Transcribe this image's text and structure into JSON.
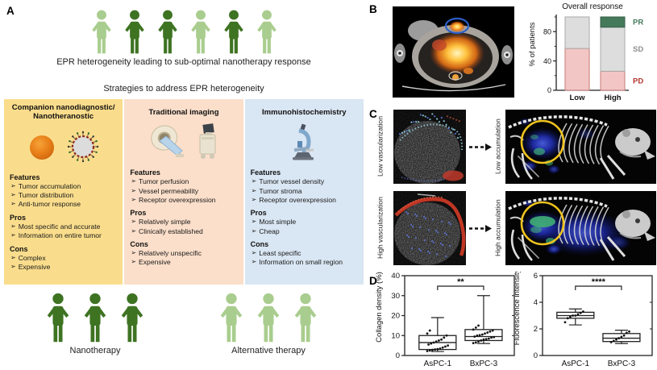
{
  "colors": {
    "person_light_green": "#a9cd8e",
    "person_dark_green": "#3e7322",
    "panel_yellow": "#fadd8c",
    "panel_peach": "#fbdfca",
    "panel_blue": "#d9e6f3",
    "annotation_blue": "#2b5fc7",
    "annotation_yellow": "#f0c41f"
  },
  "panels": {
    "a": {
      "label": "A",
      "top_caption": "EPR heterogeneity leading to sub-optimal nanotherapy response",
      "strategies_title": "Strategies to address EPR heterogeneity",
      "top_people": [
        "light",
        "dark",
        "dark",
        "light",
        "dark",
        "light"
      ],
      "bullet": "➢",
      "section_labels": {
        "features": "Features",
        "pros": "Pros",
        "cons": "Cons"
      },
      "columns": [
        {
          "title": "Companion nanodiagnostic/ Nanotheranostic",
          "bg": "#fadd8c",
          "icons": [
            "nanosphere-icon",
            "liposome-icon"
          ],
          "features": [
            "Tumor accumulation",
            "Tumor distribution",
            "Anti-tumor response"
          ],
          "pros": [
            "Most specific and accurate",
            "Information on entire tumor"
          ],
          "cons": [
            "Complex",
            "Expensive"
          ]
        },
        {
          "title": "Traditional imaging",
          "bg": "#fbdfca",
          "icons": [
            "ct-scanner-icon",
            "ultrasound-machine-icon"
          ],
          "features": [
            "Tumor perfusion",
            "Vessel permeability",
            "Receptor overexpression"
          ],
          "pros": [
            "Relatively simple",
            "Clinically established"
          ],
          "cons": [
            "Relatively unspecific",
            "Expensive"
          ]
        },
        {
          "title": "Immunohistochemistry",
          "bg": "#d9e6f3",
          "icons": [
            "microscope-icon"
          ],
          "features": [
            "Tumor vessel density",
            "Tumor stroma",
            "Receptor overexpression"
          ],
          "pros": [
            "Most simple",
            "Cheap"
          ],
          "cons": [
            "Least specific",
            "Information on small region"
          ]
        }
      ],
      "bottom_groups": [
        {
          "label": "Nanotherapy",
          "shade": "dark",
          "count": 3
        },
        {
          "label": "Alternative therapy",
          "shade": "light",
          "count": 3
        }
      ]
    },
    "b": {
      "label": "B"
    },
    "c": {
      "label": "C",
      "rows": [
        {
          "left_label": "Low vascularization",
          "right_label": "Low accumulation"
        },
        {
          "left_label": "High vascularization",
          "right_label": "High accumulation"
        }
      ]
    },
    "d": {
      "label": "D"
    }
  },
  "chart_data": [
    {
      "type": "bar",
      "stacked": true,
      "title": "Overall response",
      "ylabel": "% of patients",
      "categories": [
        "Low",
        "High"
      ],
      "series": [
        {
          "name": "PD",
          "values": [
            57,
            26
          ],
          "color": "#f2c6c4",
          "edge": "#c47a78",
          "label_color": "#b5342e"
        },
        {
          "name": "SD",
          "values": [
            43,
            60
          ],
          "color": "#dddddd",
          "edge": "#a9a9a9",
          "label_color": "#8e8e8e"
        },
        {
          "name": "PR",
          "values": [
            0,
            14
          ],
          "color": "#44795a",
          "edge": "#36604a",
          "label_color": "#44795a"
        }
      ],
      "ylim": [
        0,
        100
      ],
      "yticks": [
        0,
        40,
        80
      ],
      "minor_yticks": [
        20,
        60,
        100
      ],
      "legend_position": "right"
    },
    {
      "type": "box",
      "ylabel": "Collagen density (%)",
      "categories": [
        "AsPC-1",
        "BxPC-3"
      ],
      "ylim": [
        0,
        40
      ],
      "yticks": [
        0,
        10,
        20,
        30,
        40
      ],
      "significance": "**",
      "boxes": [
        {
          "whisker_low": 2,
          "q1": 3,
          "median": 6.5,
          "q3": 10,
          "whisker_high": 19,
          "points": [
            2.2,
            2.5,
            2.8,
            3,
            3.2,
            3.5,
            4,
            4.5,
            5,
            5.5,
            6,
            6.5,
            7,
            7.5,
            8,
            9,
            10,
            11,
            12.5
          ]
        },
        {
          "whisker_low": 6,
          "q1": 7.5,
          "median": 9.5,
          "q3": 13,
          "whisker_high": 30,
          "points": [
            6.2,
            6.5,
            7,
            7.5,
            8,
            8.2,
            8.5,
            9,
            9.2,
            9.5,
            10,
            10.2,
            10.5,
            11,
            11.5,
            12,
            12.5,
            13,
            14,
            15
          ]
        }
      ]
    },
    {
      "type": "box",
      "ylabel": "Fluorescence intensity",
      "categories": [
        "AsPC-1",
        "BxPC-3"
      ],
      "ylim": [
        0,
        6
      ],
      "yticks": [
        0,
        2,
        4,
        6
      ],
      "significance": "****",
      "boxes": [
        {
          "whisker_low": 2.3,
          "q1": 2.8,
          "median": 3.0,
          "q3": 3.25,
          "whisker_high": 3.5,
          "points": [
            2.5,
            2.8,
            2.9,
            3.0,
            3.0,
            3.1,
            3.2,
            3.3
          ]
        },
        {
          "whisker_low": 0.9,
          "q1": 1.05,
          "median": 1.3,
          "q3": 1.65,
          "whisker_high": 1.9,
          "points": [
            1.0,
            1.1,
            1.2,
            1.3,
            1.4,
            1.5,
            1.7,
            1.8
          ]
        }
      ]
    }
  ]
}
